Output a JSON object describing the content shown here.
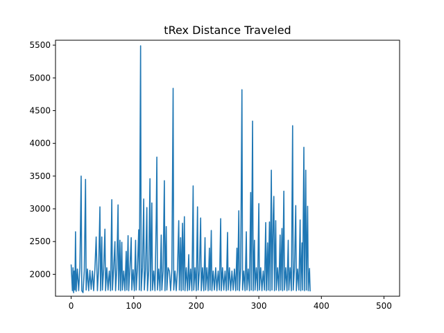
{
  "chart_data": {
    "type": "line",
    "title": "tRex Distance Traveled",
    "xlabel": "",
    "ylabel": "",
    "xlim": [
      -25,
      525
    ],
    "ylim": [
      1665,
      5575
    ],
    "grid": false,
    "legend": "none",
    "x_ticks": [
      0,
      100,
      200,
      300,
      400,
      500
    ],
    "x_tick_labels": [
      "0",
      "100",
      "200",
      "300",
      "400",
      "500"
    ],
    "y_ticks": [
      2000,
      2500,
      3000,
      3500,
      4000,
      4500,
      5000,
      5500
    ],
    "y_tick_labels": [
      "2000",
      "2500",
      "3000",
      "3500",
      "4000",
      "4500",
      "5000",
      "5500"
    ],
    "series": [
      {
        "color": "#1f77b4",
        "points": [
          [
            0,
            2150
          ],
          [
            2,
            1750
          ],
          [
            3,
            2100
          ],
          [
            4,
            1720
          ],
          [
            5,
            2050
          ],
          [
            6,
            1760
          ],
          [
            7,
            2650
          ],
          [
            8,
            1740
          ],
          [
            10,
            2080
          ],
          [
            12,
            1750
          ],
          [
            14,
            2100
          ],
          [
            16,
            3500
          ],
          [
            17,
            1750
          ],
          [
            19,
            1720
          ],
          [
            21,
            2050
          ],
          [
            23,
            3450
          ],
          [
            24,
            1760
          ],
          [
            26,
            2080
          ],
          [
            28,
            1750
          ],
          [
            30,
            2060
          ],
          [
            32,
            1770
          ],
          [
            34,
            2050
          ],
          [
            36,
            1750
          ],
          [
            38,
            2080
          ],
          [
            40,
            2570
          ],
          [
            42,
            1750
          ],
          [
            44,
            2100
          ],
          [
            46,
            3030
          ],
          [
            47,
            1750
          ],
          [
            49,
            2570
          ],
          [
            50,
            1760
          ],
          [
            52,
            2080
          ],
          [
            54,
            2690
          ],
          [
            55,
            1750
          ],
          [
            57,
            2100
          ],
          [
            59,
            1760
          ],
          [
            61,
            2050
          ],
          [
            63,
            1750
          ],
          [
            65,
            3140
          ],
          [
            66,
            1760
          ],
          [
            68,
            2100
          ],
          [
            70,
            2500
          ],
          [
            71,
            1750
          ],
          [
            73,
            2080
          ],
          [
            75,
            3060
          ],
          [
            76,
            1760
          ],
          [
            78,
            2520
          ],
          [
            79,
            1750
          ],
          [
            81,
            2490
          ],
          [
            82,
            1760
          ],
          [
            84,
            2050
          ],
          [
            86,
            1750
          ],
          [
            88,
            2350
          ],
          [
            89,
            1760
          ],
          [
            91,
            2590
          ],
          [
            92,
            1750
          ],
          [
            94,
            2100
          ],
          [
            96,
            2560
          ],
          [
            97,
            1760
          ],
          [
            99,
            2070
          ],
          [
            101,
            1750
          ],
          [
            103,
            2520
          ],
          [
            104,
            1760
          ],
          [
            106,
            2100
          ],
          [
            108,
            2680
          ],
          [
            109,
            1760
          ],
          [
            111,
            5490
          ],
          [
            112,
            1750
          ],
          [
            114,
            2100
          ],
          [
            116,
            3150
          ],
          [
            117,
            1760
          ],
          [
            119,
            2080
          ],
          [
            121,
            3020
          ],
          [
            122,
            1750
          ],
          [
            124,
            2050
          ],
          [
            126,
            3460
          ],
          [
            127,
            1750
          ],
          [
            129,
            3090
          ],
          [
            130,
            1760
          ],
          [
            132,
            2050
          ],
          [
            134,
            1750
          ],
          [
            136,
            2850
          ],
          [
            137,
            3790
          ],
          [
            138,
            1760
          ],
          [
            140,
            2080
          ],
          [
            142,
            1750
          ],
          [
            144,
            2600
          ],
          [
            145,
            1760
          ],
          [
            147,
            2050
          ],
          [
            149,
            3430
          ],
          [
            150,
            1750
          ],
          [
            152,
            2730
          ],
          [
            153,
            1760
          ],
          [
            155,
            2100
          ],
          [
            157,
            2050
          ],
          [
            159,
            1750
          ],
          [
            161,
            2080
          ],
          [
            163,
            4840
          ],
          [
            164,
            1760
          ],
          [
            166,
            2050
          ],
          [
            168,
            1750
          ],
          [
            170,
            2080
          ],
          [
            172,
            2820
          ],
          [
            173,
            1760
          ],
          [
            175,
            2560
          ],
          [
            176,
            1750
          ],
          [
            178,
            2780
          ],
          [
            179,
            1760
          ],
          [
            181,
            2880
          ],
          [
            182,
            1750
          ],
          [
            184,
            2100
          ],
          [
            186,
            1750
          ],
          [
            188,
            2300
          ],
          [
            189,
            1760
          ],
          [
            191,
            2080
          ],
          [
            193,
            1750
          ],
          [
            195,
            3350
          ],
          [
            196,
            1760
          ],
          [
            198,
            2100
          ],
          [
            200,
            1750
          ],
          [
            202,
            3030
          ],
          [
            203,
            1760
          ],
          [
            205,
            2050
          ],
          [
            207,
            2860
          ],
          [
            208,
            1750
          ],
          [
            210,
            2100
          ],
          [
            212,
            1750
          ],
          [
            214,
            2560
          ],
          [
            215,
            1760
          ],
          [
            217,
            2100
          ],
          [
            219,
            1750
          ],
          [
            221,
            2400
          ],
          [
            222,
            1760
          ],
          [
            224,
            2670
          ],
          [
            225,
            1750
          ],
          [
            227,
            2050
          ],
          [
            229,
            1760
          ],
          [
            231,
            2100
          ],
          [
            233,
            1750
          ],
          [
            235,
            2050
          ],
          [
            237,
            1760
          ],
          [
            239,
            2850
          ],
          [
            240,
            1750
          ],
          [
            242,
            2100
          ],
          [
            244,
            1760
          ],
          [
            246,
            2050
          ],
          [
            248,
            1750
          ],
          [
            250,
            2640
          ],
          [
            251,
            1760
          ],
          [
            253,
            2100
          ],
          [
            255,
            1750
          ],
          [
            257,
            2050
          ],
          [
            259,
            1760
          ],
          [
            261,
            2080
          ],
          [
            263,
            1750
          ],
          [
            265,
            2400
          ],
          [
            266,
            1760
          ],
          [
            268,
            2970
          ],
          [
            269,
            1750
          ],
          [
            271,
            2100
          ],
          [
            273,
            4820
          ],
          [
            274,
            1760
          ],
          [
            276,
            2050
          ],
          [
            278,
            1750
          ],
          [
            280,
            2650
          ],
          [
            281,
            1760
          ],
          [
            283,
            2080
          ],
          [
            285,
            1750
          ],
          [
            287,
            3250
          ],
          [
            288,
            1760
          ],
          [
            290,
            4340
          ],
          [
            291,
            1750
          ],
          [
            293,
            2520
          ],
          [
            294,
            1760
          ],
          [
            296,
            2100
          ],
          [
            298,
            1750
          ],
          [
            300,
            3080
          ],
          [
            301,
            1760
          ],
          [
            303,
            2100
          ],
          [
            305,
            1750
          ],
          [
            307,
            2050
          ],
          [
            309,
            1760
          ],
          [
            311,
            2790
          ],
          [
            312,
            1750
          ],
          [
            314,
            2480
          ],
          [
            315,
            1760
          ],
          [
            317,
            2800
          ],
          [
            318,
            1750
          ],
          [
            320,
            3590
          ],
          [
            321,
            1760
          ],
          [
            323,
            2900
          ],
          [
            324,
            3190
          ],
          [
            325,
            1750
          ],
          [
            327,
            2820
          ],
          [
            328,
            1760
          ],
          [
            330,
            2100
          ],
          [
            332,
            1750
          ],
          [
            334,
            2600
          ],
          [
            335,
            1760
          ],
          [
            337,
            2700
          ],
          [
            338,
            1750
          ],
          [
            340,
            3270
          ],
          [
            341,
            1760
          ],
          [
            343,
            2100
          ],
          [
            345,
            1750
          ],
          [
            347,
            2520
          ],
          [
            348,
            1760
          ],
          [
            350,
            2100
          ],
          [
            352,
            1750
          ],
          [
            354,
            4270
          ],
          [
            355,
            1760
          ],
          [
            357,
            2100
          ],
          [
            359,
            3050
          ],
          [
            360,
            1750
          ],
          [
            362,
            2080
          ],
          [
            364,
            1760
          ],
          [
            366,
            2830
          ],
          [
            367,
            1750
          ],
          [
            369,
            2480
          ],
          [
            370,
            1760
          ],
          [
            372,
            3940
          ],
          [
            373,
            1750
          ],
          [
            375,
            3590
          ],
          [
            376,
            1760
          ],
          [
            378,
            3040
          ],
          [
            379,
            1750
          ],
          [
            381,
            2090
          ],
          [
            382,
            1740
          ]
        ]
      }
    ]
  }
}
